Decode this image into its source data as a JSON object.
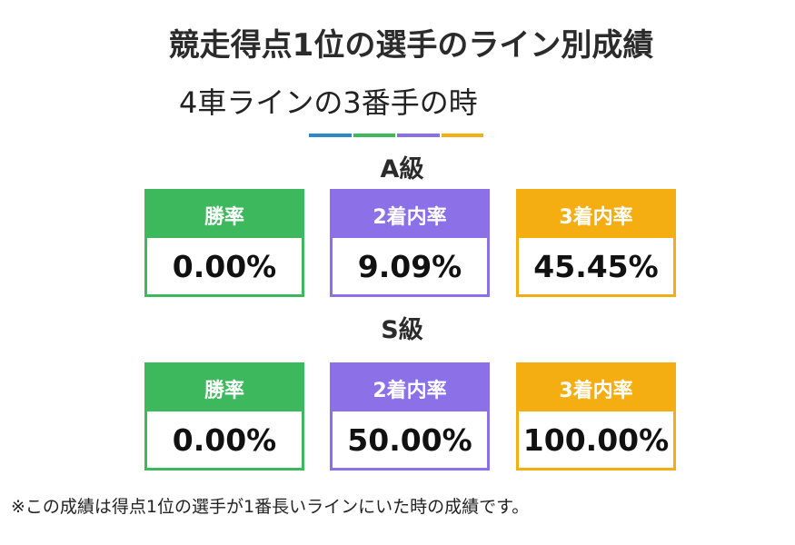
{
  "title": "競走得点1位の選手のライン別成績",
  "subtitle": "4車ラインの3番手の時",
  "colors": {
    "blue": "#2a8ac8",
    "green": "#3db85c",
    "purple": "#8b70e8",
    "orange": "#f5ae12"
  },
  "grades": [
    {
      "label": "A級",
      "stats": [
        {
          "label": "勝率",
          "value": "0.00%"
        },
        {
          "label": "2着内率",
          "value": "9.09%"
        },
        {
          "label": "3着内率",
          "value": "45.45%"
        }
      ]
    },
    {
      "label": "S級",
      "stats": [
        {
          "label": "勝率",
          "value": "0.00%"
        },
        {
          "label": "2着内率",
          "value": "50.00%"
        },
        {
          "label": "3着内率",
          "value": "100.00%"
        }
      ]
    }
  ],
  "note": "※この成績は得点1位の選手が1番長いラインにいた時の成績です。"
}
